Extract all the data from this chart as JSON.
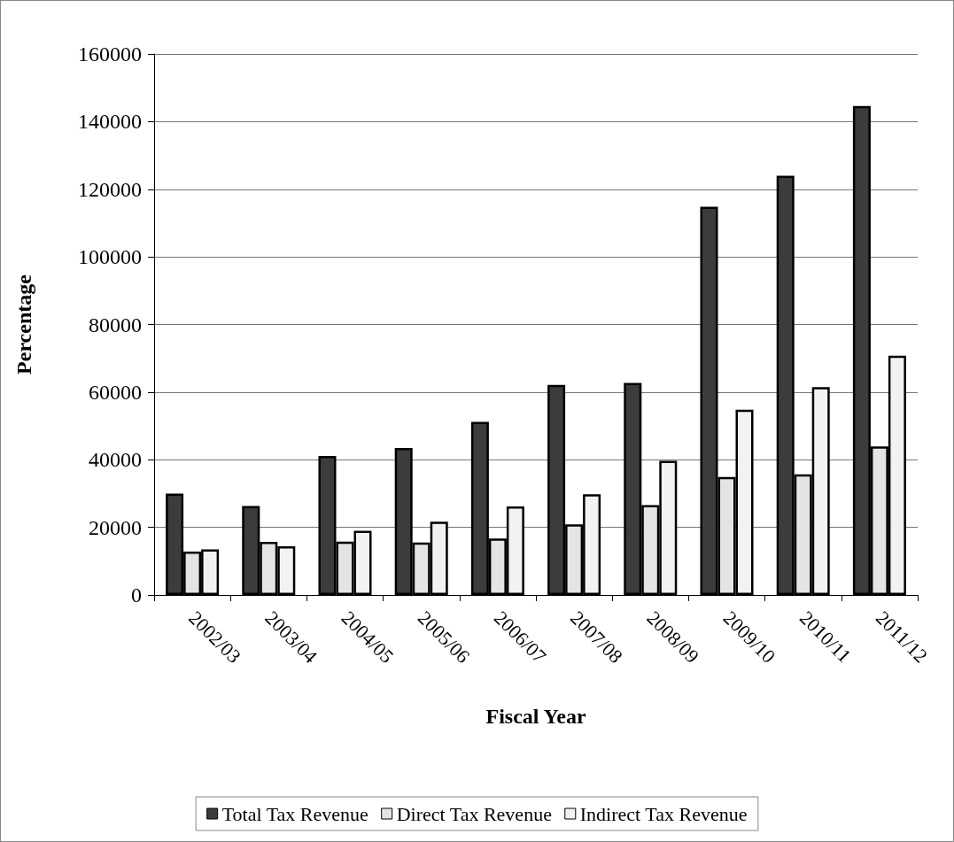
{
  "chart_data": {
    "type": "bar",
    "xlabel": "Fiscal Year",
    "ylabel": "Percentage",
    "categories": [
      "2002/03",
      "2003/04",
      "2004/05",
      "2005/06",
      "2006/07",
      "2007/08",
      "2008/09",
      "2009/10",
      "2010/11",
      "2011/12"
    ],
    "series": [
      {
        "name": "Total Tax Revenue",
        "color": "#3c3c3c",
        "values": [
          30000,
          26300,
          41100,
          43500,
          51200,
          62100,
          62700,
          114800,
          124000,
          144600
        ]
      },
      {
        "name": "Direct Tax Revenue",
        "color": "#e4e4e4",
        "values": [
          12800,
          15700,
          15800,
          15500,
          16700,
          20900,
          26600,
          34900,
          35700,
          43900
        ]
      },
      {
        "name": "Indirect Tax Revenue",
        "color": "#f2f2f2",
        "values": [
          13500,
          14400,
          19000,
          21700,
          26200,
          29800,
          39700,
          54800,
          61500,
          70800
        ]
      }
    ],
    "ylim": [
      0,
      160000
    ],
    "yticks": [
      0,
      20000,
      40000,
      60000,
      80000,
      100000,
      120000,
      140000,
      160000
    ],
    "grid": "y",
    "legend": "bottom"
  }
}
